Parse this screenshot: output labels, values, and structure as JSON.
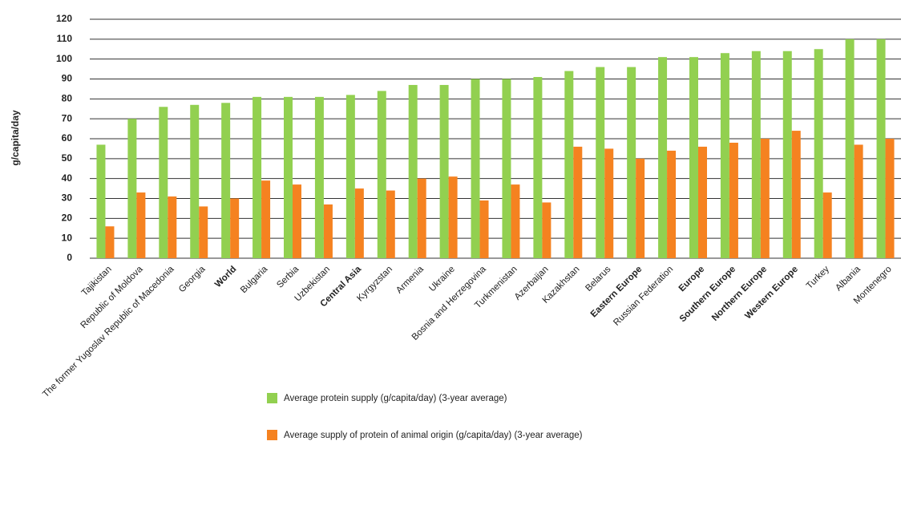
{
  "chart_data": {
    "type": "bar",
    "ylabel": "g/capita/day",
    "categories": [
      "Tajikistan",
      "Republic of Moldova",
      "The former Yugoslav Republic of Macedonia",
      "Georgia",
      "World",
      "Bulgaria",
      "Serbia",
      "Uzbekistan",
      "Central Asia",
      "Kyrgyzstan",
      "Armenia",
      "Ukraine",
      "Bosnia and Herzegovina",
      "Turkmenistan",
      "Azerbaijan",
      "Kazakhstan",
      "Belarus",
      "Eastern Europe",
      "Russian Federation",
      "Europe",
      "Southern Europe",
      "Northern Europe",
      "Western Europe",
      "Turkey",
      "Albania",
      "Montenegro"
    ],
    "bold_categories": [
      4,
      8,
      17,
      19,
      20,
      21,
      22
    ],
    "series": [
      {
        "name": "Average protein supply (g/capita/day) (3-year average)",
        "color": "#92d050",
        "values": [
          57,
          70,
          76,
          77,
          78,
          81,
          81,
          81,
          82,
          84,
          87,
          87,
          90,
          90,
          91,
          94,
          96,
          96,
          101,
          101,
          103,
          104,
          104,
          105,
          110,
          110
        ]
      },
      {
        "name": "Average supply of protein of animal origin (g/capita/day) (3-year average)",
        "color": "#f58220",
        "values": [
          16,
          33,
          31,
          26,
          30,
          39,
          37,
          27,
          35,
          34,
          40,
          41,
          29,
          37,
          28,
          56,
          55,
          50,
          54,
          56,
          58,
          60,
          64,
          33,
          57,
          60
        ]
      }
    ],
    "ylim": [
      0,
      120
    ],
    "yticks": [
      0,
      10,
      20,
      30,
      40,
      50,
      60,
      70,
      80,
      90,
      100,
      110,
      120
    ],
    "grid": true,
    "legend": "bottom"
  }
}
